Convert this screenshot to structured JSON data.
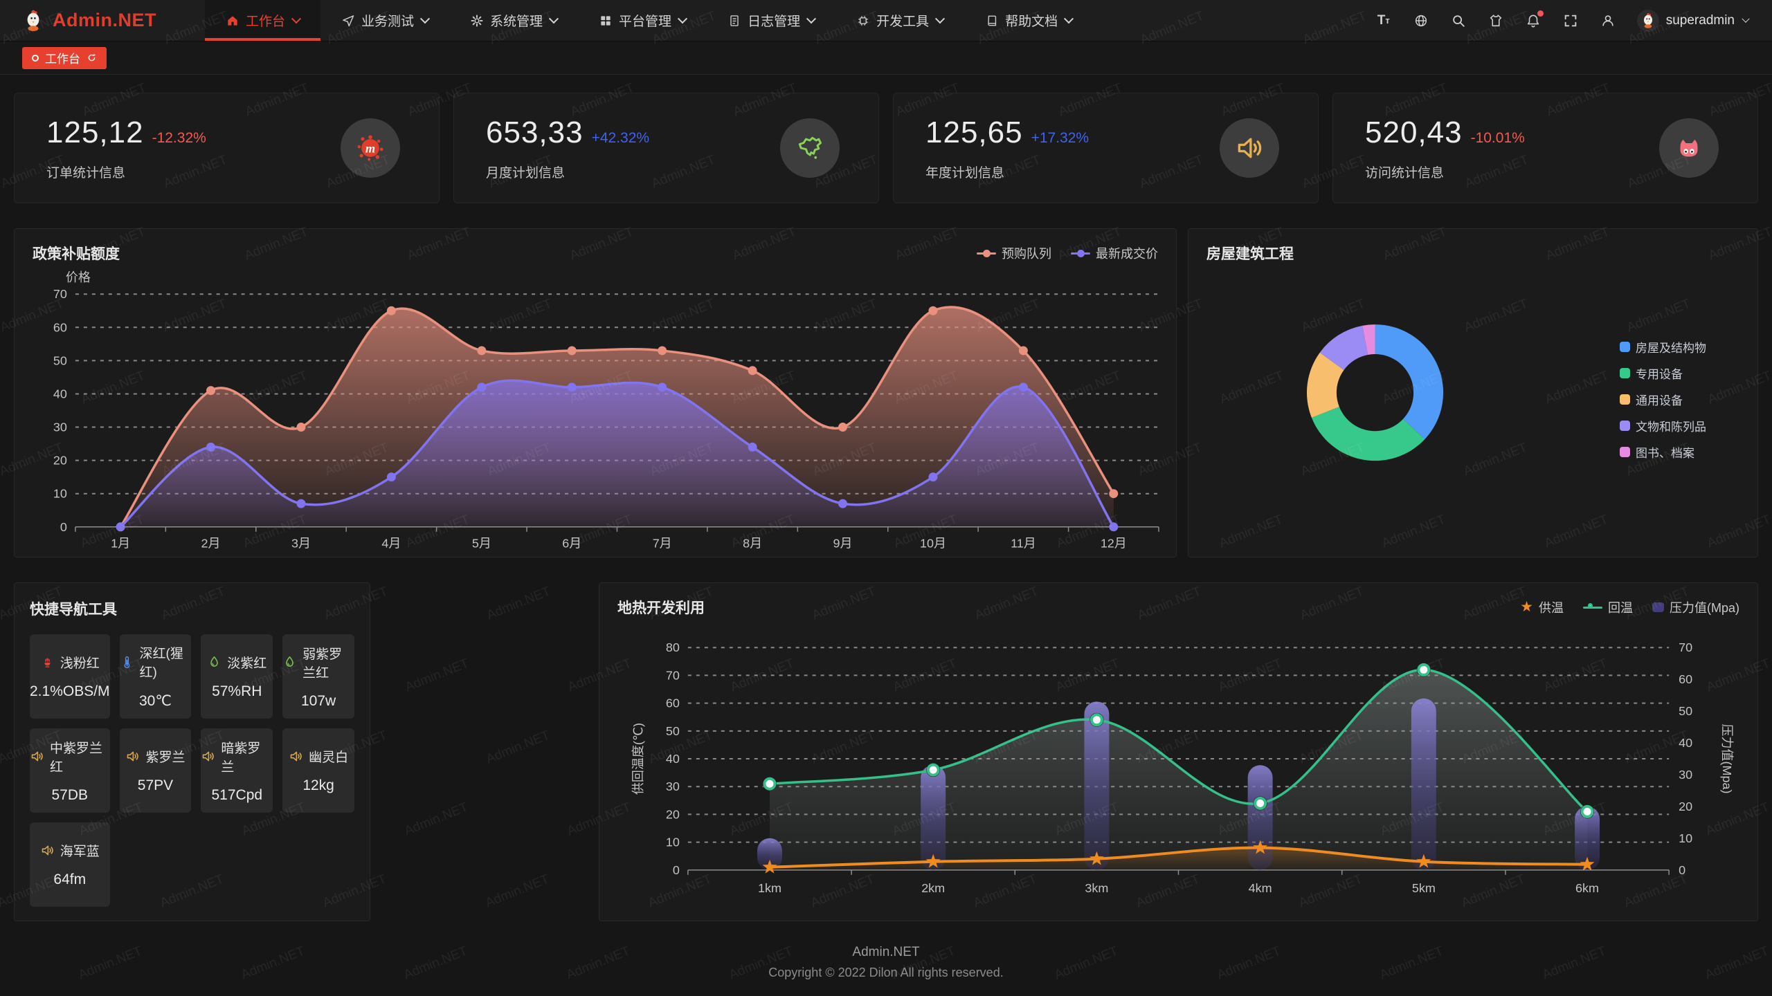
{
  "watermark": "Admin.NET",
  "colors": {
    "accent": "#e8402f",
    "up": "#3e63f0",
    "down": "#f35a50",
    "panel": "#1b1b1b"
  },
  "header": {
    "brand": "Admin.NET",
    "menu": [
      {
        "label": "工作台",
        "icon": "home-icon",
        "active": true
      },
      {
        "label": "业务测试",
        "icon": "send-icon",
        "active": false
      },
      {
        "label": "系统管理",
        "icon": "gear-icon",
        "active": false
      },
      {
        "label": "平台管理",
        "icon": "grid-icon",
        "active": false
      },
      {
        "label": "日志管理",
        "icon": "log-icon",
        "active": false
      },
      {
        "label": "开发工具",
        "icon": "chip-icon",
        "active": false
      },
      {
        "label": "帮助文档",
        "icon": "book-icon",
        "active": false
      }
    ],
    "actions": [
      {
        "icon": "font-size-icon",
        "badge": false
      },
      {
        "icon": "language-icon",
        "badge": false
      },
      {
        "icon": "search-icon",
        "badge": false
      },
      {
        "icon": "theme-icon",
        "badge": false
      },
      {
        "icon": "notification-icon",
        "badge": true
      },
      {
        "icon": "fullscreen-icon",
        "badge": false
      },
      {
        "icon": "profile-icon",
        "badge": false
      }
    ],
    "user": {
      "name": "superadmin"
    }
  },
  "tabbar": {
    "label": "工作台"
  },
  "stats": [
    {
      "value": "125,12",
      "delta": "-12.32%",
      "trend": "down",
      "label": "订单统计信息",
      "icon": "splat-icon",
      "icon_color": "#e23c2b"
    },
    {
      "value": "653,33",
      "delta": "+42.32%",
      "trend": "up",
      "label": "月度计划信息",
      "icon": "map-icon",
      "icon_color": "#8bd258"
    },
    {
      "value": "125,65",
      "delta": "+17.32%",
      "trend": "up",
      "label": "年度计划信息",
      "icon": "speaker-icon",
      "icon_color": "#e9b04c"
    },
    {
      "value": "520,43",
      "delta": "-10.01%",
      "trend": "down",
      "label": "访问统计信息",
      "icon": "cat-icon",
      "icon_color": "#f2717d"
    }
  ],
  "chart_data": [
    {
      "type": "line",
      "title": "政策补贴额度",
      "ylabel": "价格",
      "ylim": [
        0,
        70
      ],
      "ystep": 10,
      "grid": "dashed",
      "legend_position": "top-right",
      "categories": [
        "1月",
        "2月",
        "3月",
        "4月",
        "5月",
        "6月",
        "7月",
        "8月",
        "9月",
        "10月",
        "11月",
        "12月"
      ],
      "series": [
        {
          "name": "预购队列",
          "color": "#e9907f",
          "values": [
            0,
            41,
            30,
            65,
            53,
            53,
            53,
            47,
            30,
            65,
            53,
            10
          ]
        },
        {
          "name": "最新成交价",
          "color": "#8273ee",
          "values": [
            0,
            24,
            7,
            15,
            42,
            42,
            42,
            24,
            7,
            15,
            42,
            0
          ]
        }
      ]
    },
    {
      "type": "pie",
      "title": "房屋建筑工程",
      "legend_position": "right",
      "slices": [
        {
          "label": "房屋及结构物",
          "value": 37,
          "color": "#4f9bf7"
        },
        {
          "label": "专用设备",
          "value": 32,
          "color": "#37c98b"
        },
        {
          "label": "通用设备",
          "value": 16,
          "color": "#f7bf6d"
        },
        {
          "label": "文物和陈列品",
          "value": 12,
          "color": "#9b8bf4"
        },
        {
          "label": "图书、档案",
          "value": 3,
          "color": "#e58be0"
        }
      ]
    },
    {
      "type": "combo",
      "title": "地热开发利用",
      "categories": [
        "1km",
        "2km",
        "3km",
        "4km",
        "5km",
        "6km"
      ],
      "ylabel_left": "供回温度(℃)",
      "ylim_left": [
        0,
        80
      ],
      "ylabel_right": "压力值(Mpa)",
      "ylim_right": [
        0,
        70
      ],
      "legend_position": "top-right",
      "series": [
        {
          "name": "供温",
          "type": "line",
          "axis": "left",
          "color": "#f08c1f",
          "marker": "star",
          "values": [
            1,
            3,
            4,
            8,
            3,
            2
          ]
        },
        {
          "name": "回温",
          "type": "line",
          "axis": "left",
          "color": "#35c08a",
          "marker": "circle",
          "values": [
            31,
            36,
            54,
            24,
            72,
            21
          ]
        },
        {
          "name": "压力值(Mpa)",
          "type": "bar",
          "axis": "right",
          "color": "#6a63b8",
          "values": [
            10,
            33,
            53,
            33,
            54,
            20
          ]
        }
      ]
    }
  ],
  "quick_nav": {
    "title": "快捷导航工具",
    "items": [
      {
        "label": "浅粉红",
        "value": "2.1%OBS/M",
        "icon": "fire-icon",
        "icon_color": "#d9443f"
      },
      {
        "label": "深红(猩红)",
        "value": "30℃",
        "icon": "thermometer-icon",
        "icon_color": "#4f8df5"
      },
      {
        "label": "淡紫红",
        "value": "57%RH",
        "icon": "droplet-icon",
        "icon_color": "#7cc04f"
      },
      {
        "label": "弱紫罗兰红",
        "value": "107w",
        "icon": "droplet-icon",
        "icon_color": "#7cc04f"
      },
      {
        "label": "中紫罗兰红",
        "value": "57DB",
        "icon": "speaker-icon",
        "icon_color": "#dba84f"
      },
      {
        "label": "紫罗兰",
        "value": "57PV",
        "icon": "speaker-icon",
        "icon_color": "#dba84f"
      },
      {
        "label": "暗紫罗兰",
        "value": "517Cpd",
        "icon": "speaker-icon",
        "icon_color": "#dba84f"
      },
      {
        "label": "幽灵白",
        "value": "12kg",
        "icon": "speaker-icon",
        "icon_color": "#dba84f"
      },
      {
        "label": "海军蓝",
        "value": "64fm",
        "icon": "speaker-icon",
        "icon_color": "#dba84f"
      }
    ]
  },
  "footer": {
    "line1": "Admin.NET",
    "line2": "Copyright © 2022 Dilon All rights reserved."
  }
}
